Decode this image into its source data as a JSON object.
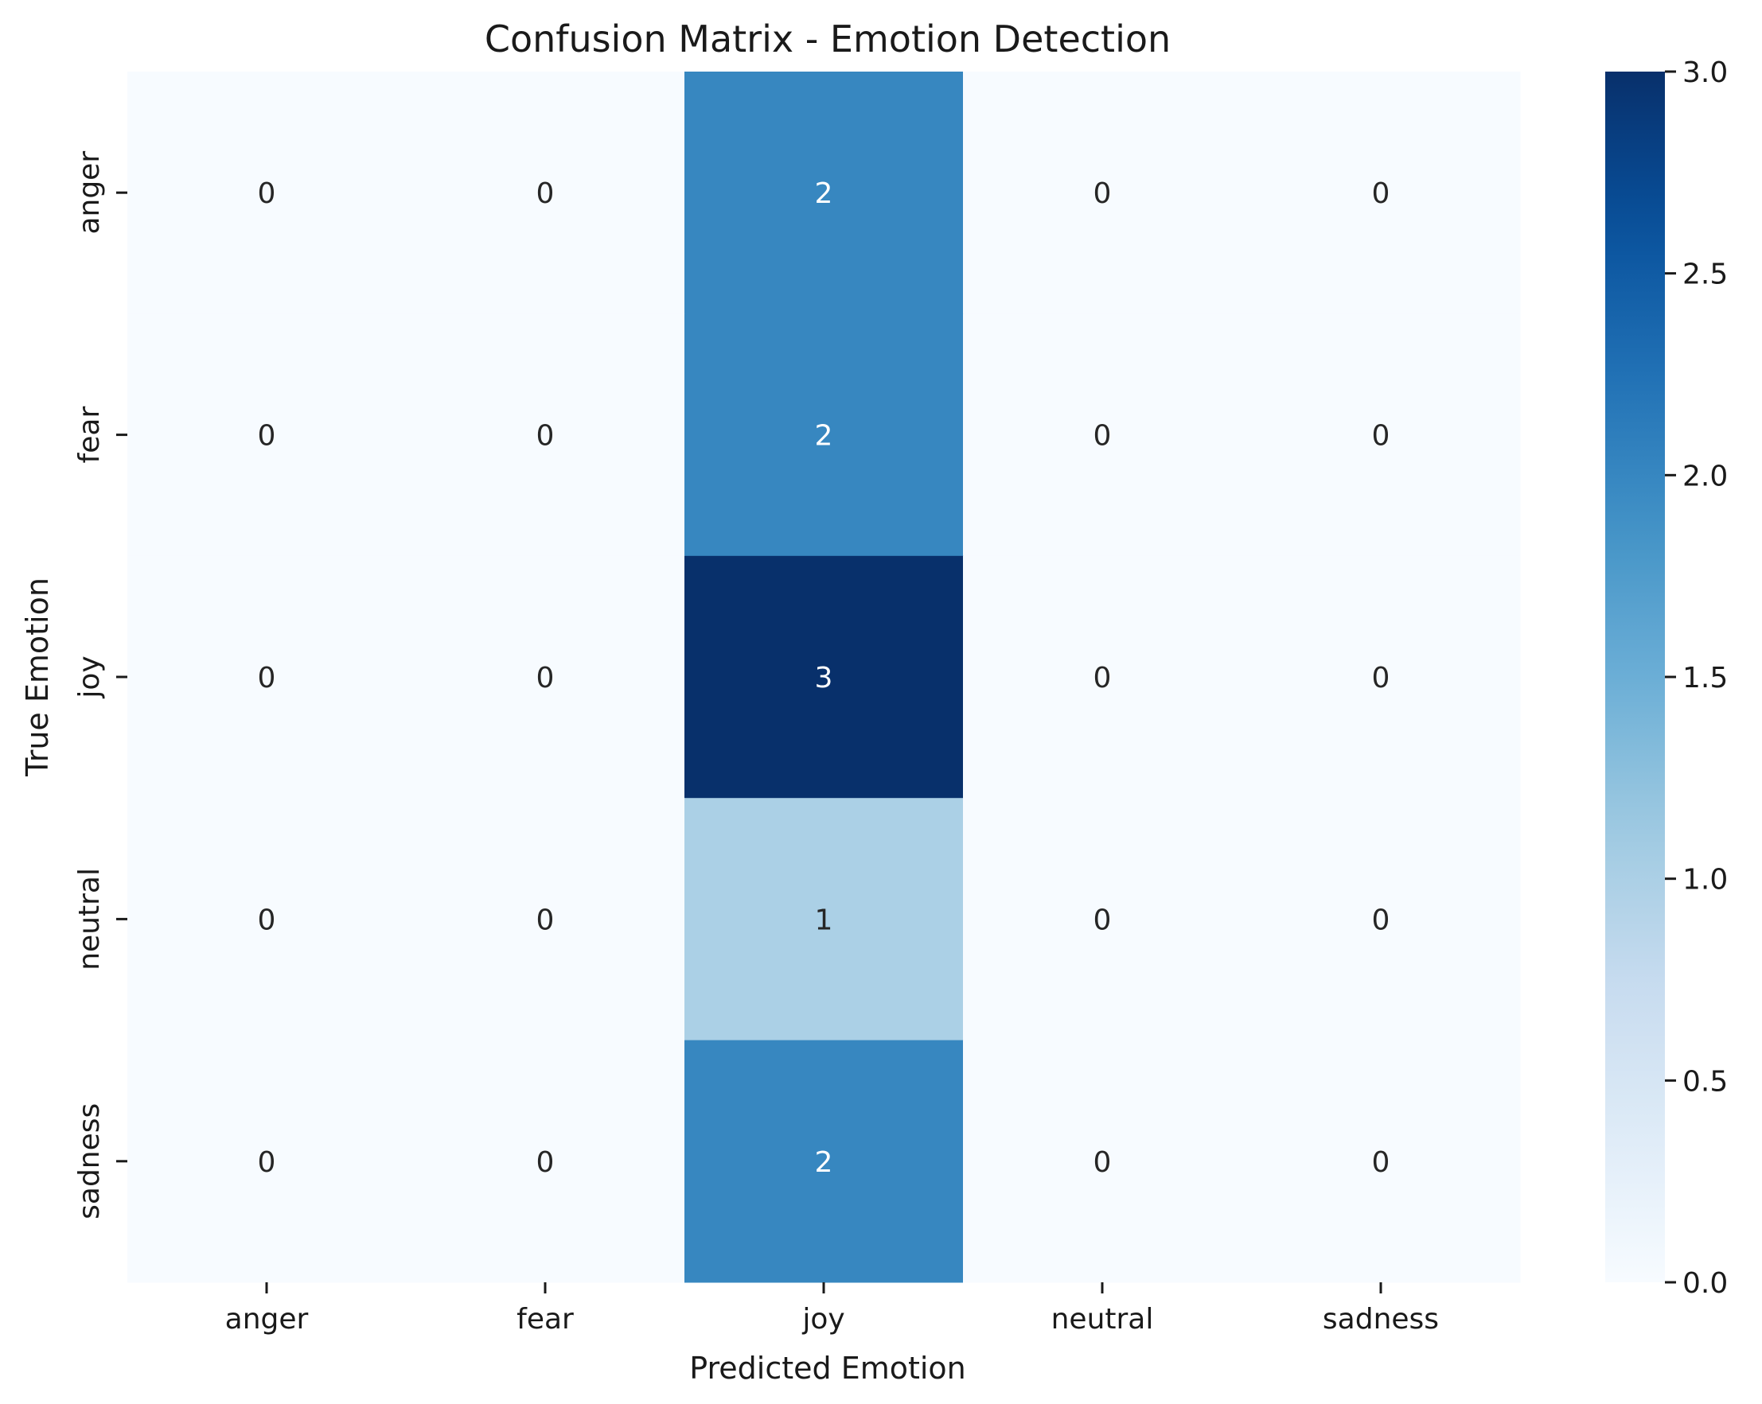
{
  "chart_data": {
    "type": "heatmap",
    "title": "Confusion Matrix - Emotion Detection",
    "xlabel": "Predicted Emotion",
    "ylabel": "True Emotion",
    "x_categories": [
      "anger",
      "fear",
      "joy",
      "neutral",
      "sadness"
    ],
    "y_categories": [
      "anger",
      "fear",
      "joy",
      "neutral",
      "sadness"
    ],
    "values": [
      [
        0,
        0,
        2,
        0,
        0
      ],
      [
        0,
        0,
        2,
        0,
        0
      ],
      [
        0,
        0,
        3,
        0,
        0
      ],
      [
        0,
        0,
        1,
        0,
        0
      ],
      [
        0,
        0,
        2,
        0,
        0
      ]
    ],
    "colormap": "Blues",
    "colorbar": {
      "range": [
        0.0,
        3.0
      ],
      "ticks": [
        "0.0",
        "0.5",
        "1.0",
        "1.5",
        "2.0",
        "2.5",
        "3.0"
      ],
      "tick_values": [
        0.0,
        0.5,
        1.0,
        1.5,
        2.0,
        2.5,
        3.0
      ]
    },
    "grid": false,
    "annotations": true
  }
}
